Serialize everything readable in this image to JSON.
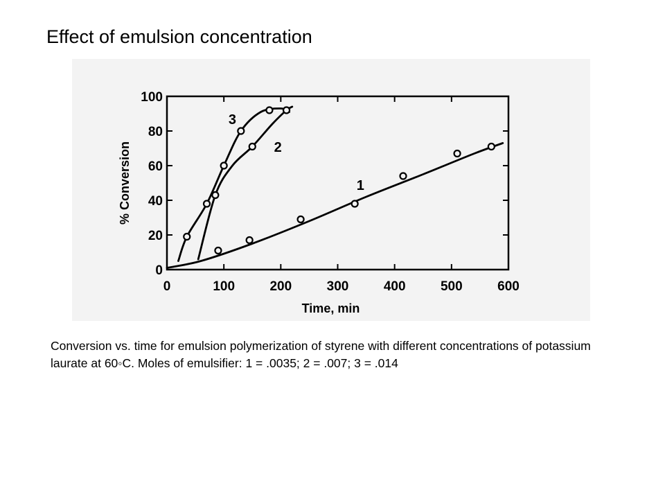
{
  "slide": {
    "title": "Effect of emulsion concentration",
    "caption": "Conversion vs. time for emulsion polymerization of styrene with different concentrations of potassium laurate at 60◦C. Moles of emulsifier: 1 = .0035; 2 = .007; 3 = .014"
  },
  "chart_data": {
    "type": "line",
    "title": "",
    "xlabel": "Time, min",
    "ylabel": "% Conversion",
    "xlim": [
      0,
      600
    ],
    "ylim": [
      0,
      100
    ],
    "xticks": [
      0,
      100,
      200,
      300,
      400,
      500,
      600
    ],
    "yticks": [
      0,
      20,
      40,
      60,
      80,
      100
    ],
    "grid": false,
    "series": [
      {
        "name": "1",
        "points": [
          [
            90,
            11
          ],
          [
            145,
            17
          ],
          [
            235,
            29
          ],
          [
            330,
            38
          ],
          [
            415,
            54
          ],
          [
            510,
            67
          ],
          [
            570,
            71
          ]
        ],
        "curve": [
          [
            0,
            1
          ],
          [
            60,
            5
          ],
          [
            150,
            15
          ],
          [
            250,
            28
          ],
          [
            350,
            42
          ],
          [
            450,
            55
          ],
          [
            540,
            67
          ],
          [
            590,
            73
          ]
        ]
      },
      {
        "name": "2",
        "points": [
          [
            85,
            43
          ],
          [
            150,
            71
          ],
          [
            210,
            92
          ]
        ],
        "curve": [
          [
            55,
            6
          ],
          [
            85,
            43
          ],
          [
            115,
            60
          ],
          [
            150,
            71
          ],
          [
            185,
            84
          ],
          [
            210,
            92
          ],
          [
            220,
            94
          ]
        ]
      },
      {
        "name": "3",
        "points": [
          [
            35,
            19
          ],
          [
            70,
            38
          ],
          [
            100,
            60
          ],
          [
            130,
            80
          ],
          [
            180,
            92
          ]
        ],
        "curve": [
          [
            20,
            5
          ],
          [
            35,
            19
          ],
          [
            70,
            38
          ],
          [
            100,
            60
          ],
          [
            130,
            80
          ],
          [
            165,
            91
          ],
          [
            200,
            93
          ],
          [
            215,
            91
          ]
        ]
      }
    ]
  }
}
